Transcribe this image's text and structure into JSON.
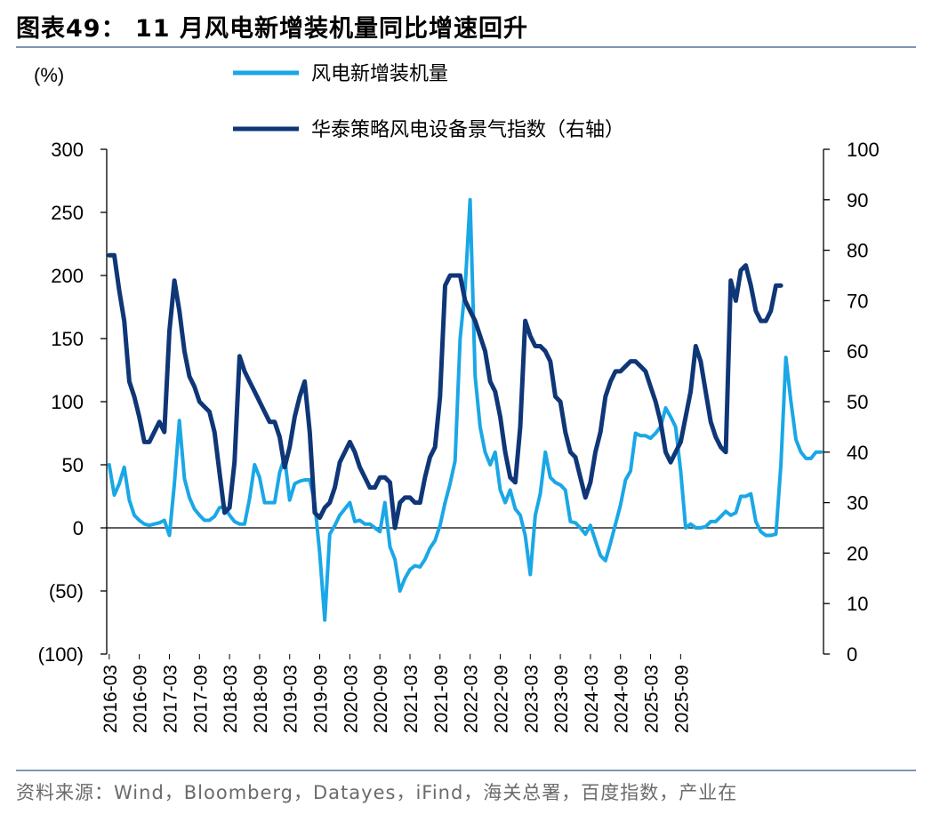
{
  "header": {
    "title": "图表49：  11 月风电新增装机量同比增速回升"
  },
  "footer": {
    "source": "资料来源：Wind，Bloomberg，Datayes，iFind，海关总署，百度指数，产业在"
  },
  "colors": {
    "series_light": "#1aa7e6",
    "series_dark": "#0f3677",
    "rule": "#7f95b5"
  },
  "chart_data": {
    "type": "line",
    "title": "11 月风电新增装机量同比增速回升",
    "ylabel": "(%)",
    "left_axis": {
      "min": -100,
      "max": 300,
      "ticks": [
        300,
        250,
        200,
        150,
        100,
        50,
        0,
        -50,
        -100
      ],
      "tick_labels": [
        "300",
        "250",
        "200",
        "150",
        "100",
        "50",
        "0",
        "(50)",
        "(100)"
      ]
    },
    "right_axis": {
      "min": 0,
      "max": 100,
      "ticks": [
        100,
        90,
        80,
        70,
        60,
        50,
        40,
        30,
        20,
        10,
        0
      ],
      "tick_labels": [
        "100",
        "90",
        "80",
        "70",
        "60",
        "50",
        "40",
        "30",
        "20",
        "10",
        "0"
      ]
    },
    "x_start": "2016-03",
    "x_tick_labels": [
      "2016-03",
      "2016-09",
      "2017-03",
      "2017-09",
      "2018-03",
      "2018-09",
      "2019-03",
      "2019-09",
      "2020-03",
      "2020-09",
      "2021-03",
      "2021-09",
      "2022-03",
      "2022-09",
      "2023-03",
      "2023-09",
      "2024-03",
      "2024-09",
      "2025-03",
      "2025-09"
    ],
    "legend": [
      "风电新增装机量",
      "华泰策略风电设备景气指数（右轴）"
    ],
    "series": [
      {
        "name": "风电新增装机量",
        "axis": "left",
        "values": [
          50,
          26,
          35,
          48,
          22,
          10,
          6,
          3,
          2,
          3,
          4,
          6,
          -6,
          35,
          85,
          39,
          24,
          15,
          10,
          6,
          6,
          9,
          16,
          17,
          10,
          5,
          3,
          3,
          23,
          50,
          40,
          20,
          20,
          20,
          44,
          56,
          22,
          35,
          37,
          38,
          38,
          20,
          -20,
          -73,
          -5,
          2,
          10,
          15,
          20,
          5,
          6,
          3,
          3,
          0,
          -3,
          20,
          -15,
          -25,
          -50,
          -40,
          -33,
          -30,
          -31,
          -25,
          -16,
          -10,
          2,
          20,
          35,
          53,
          150,
          190,
          260,
          120,
          80,
          60,
          50,
          60,
          30,
          20,
          30,
          15,
          10,
          -6,
          -37,
          10,
          27,
          60,
          40,
          36,
          34,
          30,
          5,
          4,
          0,
          -5,
          2,
          -10,
          -22,
          -26,
          -12,
          3,
          18,
          38,
          45,
          75,
          73,
          73,
          71,
          75,
          80,
          95,
          88,
          80,
          45,
          0,
          3,
          0,
          0,
          1,
          5,
          5,
          9,
          13,
          10,
          12,
          25,
          25,
          27,
          5,
          -3,
          -6,
          -6,
          -5,
          50,
          135,
          100,
          70,
          60,
          55,
          55,
          60,
          60
        ]
      },
      {
        "name": "华泰策略风电设备景气指数（右轴）",
        "axis": "right",
        "values": [
          79,
          79,
          72,
          66,
          54,
          51,
          47,
          42,
          42,
          44,
          46,
          44,
          64,
          74,
          68,
          60,
          55,
          53,
          50,
          49,
          48,
          44,
          36,
          28,
          29,
          38,
          59,
          56,
          54,
          52,
          50,
          48,
          46,
          46,
          43,
          37,
          41,
          47,
          51,
          54,
          44,
          28,
          27,
          29,
          30,
          33,
          38,
          40,
          42,
          40,
          37,
          35,
          33,
          33,
          35,
          35,
          34,
          25,
          30,
          31,
          31,
          30,
          30,
          35,
          39,
          41,
          51,
          73,
          75,
          75,
          75,
          70,
          68,
          66,
          63,
          60,
          54,
          52,
          47,
          40,
          35,
          34,
          45,
          66,
          63,
          61,
          61,
          60,
          58,
          51,
          50,
          44,
          40,
          39,
          35,
          31,
          34,
          40,
          44,
          51,
          54,
          56,
          56,
          57,
          58,
          58,
          57,
          56,
          53,
          50,
          46,
          40,
          38,
          40,
          42,
          47,
          52,
          61,
          58,
          52,
          46,
          43,
          41,
          40,
          74,
          70,
          76,
          77,
          73,
          68,
          66,
          66,
          68,
          73,
          73
        ]
      }
    ]
  }
}
